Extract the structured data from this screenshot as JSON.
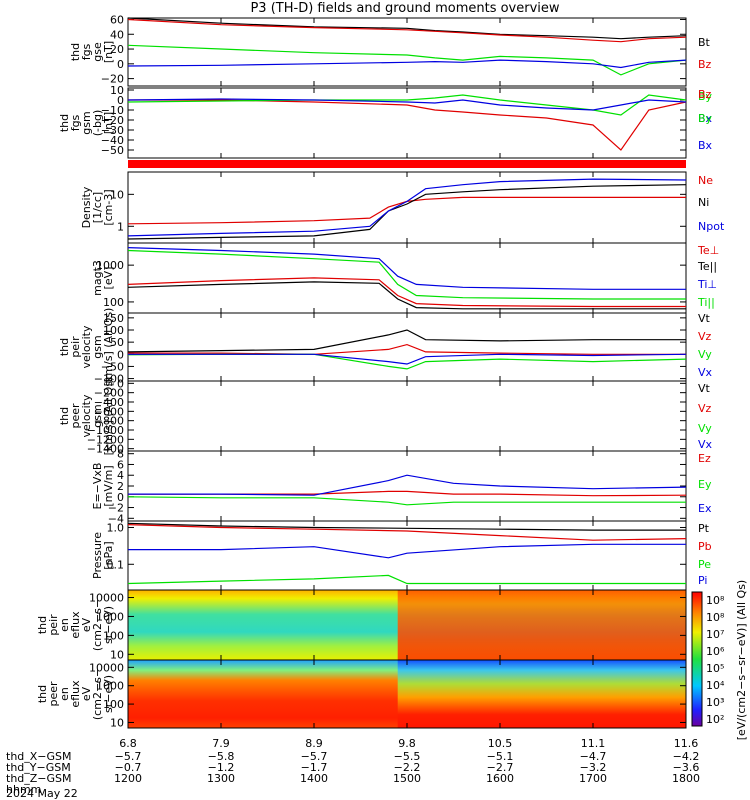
{
  "title": "P3 (TH-D) fields and ground moments overview",
  "colors": {
    "black": "#000000",
    "red": "#e00000",
    "green": "#00e000",
    "blue": "#0000e0",
    "frame": "#000000"
  },
  "chart_data": [
    {
      "type": "line",
      "id": "fgs-gse",
      "ylabel": [
        "thd",
        "fgs",
        "gse",
        "[nT]"
      ],
      "yticks": [
        "60",
        "40",
        "20",
        "0",
        "−20"
      ],
      "ylim": [
        -30,
        62
      ],
      "legend": [
        "Bt",
        "Bz",
        "By",
        "Bx"
      ],
      "legend_colors": [
        "black",
        "red",
        "green",
        "blue"
      ],
      "series": [
        {
          "name": "Bt",
          "color": "black",
          "x": [
            1200,
            1300,
            1400,
            1500,
            1530,
            1560,
            1600,
            1650,
            1700,
            1730,
            1760,
            1800
          ],
          "values": [
            62,
            55,
            50,
            48,
            45,
            43,
            40,
            38,
            36,
            34,
            36,
            38
          ]
        },
        {
          "name": "Bz",
          "color": "red",
          "x": [
            1200,
            1300,
            1400,
            1500,
            1530,
            1560,
            1600,
            1650,
            1700,
            1730,
            1760,
            1800
          ],
          "values": [
            60,
            53,
            49,
            46,
            44,
            42,
            39,
            36,
            32,
            30,
            34,
            36
          ]
        },
        {
          "name": "By",
          "color": "green",
          "x": [
            1200,
            1300,
            1400,
            1500,
            1530,
            1560,
            1600,
            1650,
            1700,
            1730,
            1760,
            1800
          ],
          "values": [
            25,
            20,
            15,
            12,
            8,
            5,
            10,
            8,
            5,
            -15,
            0,
            5
          ]
        },
        {
          "name": "Bx",
          "color": "blue",
          "x": [
            1200,
            1300,
            1400,
            1500,
            1530,
            1560,
            1600,
            1650,
            1700,
            1730,
            1760,
            1800
          ],
          "values": [
            -3,
            -2,
            0,
            2,
            3,
            2,
            5,
            3,
            0,
            -5,
            2,
            5
          ]
        }
      ]
    },
    {
      "type": "line",
      "id": "fgs-gsm",
      "ylabel": [
        "thd",
        "fgs",
        "gsm",
        "(-bg)",
        "[nT]"
      ],
      "yticks": [
        "10",
        "0",
        "−10",
        "−20",
        "−30",
        "−40",
        "−50"
      ],
      "ylim": [
        -58,
        12
      ],
      "legend": [
        "Bz",
        "By",
        "Bx"
      ],
      "legend_colors": [
        "red",
        "green",
        "blue"
      ],
      "series": [
        {
          "name": "Bz",
          "color": "red",
          "x": [
            1200,
            1300,
            1400,
            1500,
            1530,
            1560,
            1600,
            1650,
            1700,
            1730,
            1760,
            1800
          ],
          "values": [
            0,
            0,
            -2,
            -5,
            -10,
            -12,
            -15,
            -18,
            -25,
            -50,
            -10,
            -2
          ]
        },
        {
          "name": "By",
          "color": "green",
          "x": [
            1200,
            1300,
            1400,
            1500,
            1530,
            1560,
            1600,
            1650,
            1700,
            1730,
            1760,
            1800
          ],
          "values": [
            -2,
            -1,
            0,
            0,
            2,
            5,
            0,
            -5,
            -10,
            -15,
            5,
            0
          ]
        },
        {
          "name": "Bx",
          "color": "blue",
          "x": [
            1200,
            1300,
            1400,
            1500,
            1530,
            1560,
            1600,
            1650,
            1700,
            1730,
            1760,
            1800
          ],
          "values": [
            0,
            1,
            0,
            -2,
            -3,
            0,
            -5,
            -8,
            -10,
            -5,
            0,
            -2
          ]
        }
      ]
    },
    {
      "type": "line",
      "id": "density",
      "log": true,
      "ylabel": [
        "Density",
        "[1/cc]",
        "[cm-3]"
      ],
      "yticks": [
        "10",
        "1"
      ],
      "ylim": [
        0.3,
        50
      ],
      "legend": [
        "Ne",
        "Ni",
        "Npot"
      ],
      "legend_colors": [
        "red",
        "black",
        "blue"
      ],
      "series": [
        {
          "name": "Ne",
          "color": "red",
          "x": [
            1200,
            1300,
            1400,
            1460,
            1480,
            1500,
            1520,
            1560,
            1600,
            1700,
            1800
          ],
          "values": [
            1.2,
            1.3,
            1.5,
            1.8,
            4,
            6,
            7,
            8,
            8,
            8,
            8
          ]
        },
        {
          "name": "Ni",
          "color": "black",
          "x": [
            1200,
            1300,
            1400,
            1460,
            1480,
            1500,
            1520,
            1560,
            1600,
            1700,
            1800
          ],
          "values": [
            0.4,
            0.45,
            0.5,
            0.8,
            3,
            5,
            10,
            12,
            14,
            18,
            20
          ]
        },
        {
          "name": "Npot",
          "color": "blue",
          "x": [
            1200,
            1300,
            1400,
            1460,
            1480,
            1500,
            1520,
            1560,
            1600,
            1700,
            1800
          ],
          "values": [
            0.5,
            0.6,
            0.7,
            1,
            3,
            6,
            15,
            20,
            25,
            30,
            28
          ]
        }
      ]
    },
    {
      "type": "line",
      "id": "temperature",
      "log": true,
      "ylabel": [
        "magt3",
        "[eV]"
      ],
      "yticks": [
        "1000",
        "100"
      ],
      "ylim": [
        50,
        4000
      ],
      "legend": [
        "Te⊥",
        "Te||",
        "Ti⊥",
        "Ti||"
      ],
      "legend_colors": [
        "red",
        "black",
        "blue",
        "green"
      ],
      "series": [
        {
          "name": "Te⊥",
          "color": "red",
          "x": [
            1200,
            1300,
            1400,
            1470,
            1490,
            1510,
            1560,
            1700,
            1800
          ],
          "values": [
            300,
            380,
            450,
            400,
            150,
            90,
            80,
            75,
            75
          ]
        },
        {
          "name": "Te||",
          "color": "black",
          "x": [
            1200,
            1300,
            1400,
            1470,
            1490,
            1510,
            1560,
            1700,
            1800
          ],
          "values": [
            250,
            300,
            350,
            320,
            120,
            70,
            65,
            65,
            65
          ]
        },
        {
          "name": "Ti⊥",
          "color": "blue",
          "x": [
            1200,
            1300,
            1400,
            1470,
            1490,
            1510,
            1560,
            1700,
            1800
          ],
          "values": [
            3000,
            2500,
            2000,
            1500,
            500,
            300,
            250,
            220,
            220
          ]
        },
        {
          "name": "Ti||",
          "color": "green",
          "x": [
            1200,
            1300,
            1400,
            1470,
            1490,
            1510,
            1560,
            1700,
            1800
          ],
          "values": [
            2500,
            2000,
            1500,
            1200,
            300,
            150,
            130,
            120,
            120
          ]
        }
      ]
    },
    {
      "type": "line",
      "id": "ion-velocity",
      "ylabel": [
        "thd",
        "peir",
        "velocity",
        "gsm",
        "[km/s] (All Qs)"
      ],
      "yticks": [
        "150",
        "100",
        "50",
        "0",
        "−50",
        "−100"
      ],
      "ylim": [
        -110,
        170
      ],
      "legend": [
        "Vt",
        "Vz",
        "Vy",
        "Vx"
      ],
      "legend_colors": [
        "black",
        "red",
        "green",
        "blue"
      ],
      "series": [
        {
          "name": "Vt",
          "color": "black",
          "x": [
            1200,
            1300,
            1400,
            1480,
            1500,
            1520,
            1600,
            1700,
            1800
          ],
          "values": [
            10,
            15,
            20,
            80,
            100,
            60,
            55,
            60,
            60
          ]
        },
        {
          "name": "Vz",
          "color": "red",
          "x": [
            1200,
            1300,
            1400,
            1480,
            1500,
            1520,
            1600,
            1700,
            1800
          ],
          "values": [
            5,
            5,
            0,
            20,
            40,
            10,
            5,
            0,
            0
          ]
        },
        {
          "name": "Vy",
          "color": "green",
          "x": [
            1200,
            1300,
            1400,
            1480,
            1500,
            1520,
            1600,
            1700,
            1800
          ],
          "values": [
            -2,
            0,
            0,
            -50,
            -60,
            -30,
            -20,
            -30,
            -20
          ]
        },
        {
          "name": "Vx",
          "color": "blue",
          "x": [
            1200,
            1300,
            1400,
            1480,
            1500,
            1520,
            1600,
            1700,
            1800
          ],
          "values": [
            0,
            0,
            0,
            -30,
            -40,
            -10,
            0,
            -5,
            0
          ]
        }
      ]
    },
    {
      "type": "line",
      "id": "electron-velocity",
      "ylabel": [
        "thd",
        "peer",
        "velocity",
        "gsm",
        "[km/s] (All Qs)"
      ],
      "yticks": [
        "0",
        "−200",
        "−400",
        "−600",
        "−800",
        "−1000",
        "−1200",
        "−1400"
      ],
      "ylim": [
        -1450,
        50
      ],
      "legend": [
        "Vt",
        "Vz",
        "Vy",
        "Vx"
      ],
      "legend_colors": [
        "black",
        "red",
        "green",
        "blue"
      ],
      "series": []
    },
    {
      "type": "line",
      "id": "e-field",
      "ylabel": [
        "E=−VxB",
        "[mV/m]"
      ],
      "yticks": [
        "8",
        "6",
        "4",
        "2",
        "0",
        "−2",
        "−4"
      ],
      "ylim": [
        -4.5,
        8.5
      ],
      "legend": [
        "Ez",
        "Ey",
        "Ex"
      ],
      "legend_colors": [
        "red",
        "green",
        "blue"
      ],
      "series": [
        {
          "name": "Ez",
          "color": "red",
          "x": [
            1200,
            1300,
            1400,
            1480,
            1500,
            1550,
            1600,
            1700,
            1800
          ],
          "values": [
            0.5,
            0.5,
            0.5,
            1,
            1,
            0.5,
            0.5,
            0.2,
            0.3
          ]
        },
        {
          "name": "Ey",
          "color": "green",
          "x": [
            1200,
            1300,
            1400,
            1480,
            1500,
            1550,
            1600,
            1700,
            1800
          ],
          "values": [
            0,
            -0.2,
            -0.2,
            -1,
            -1.5,
            -1,
            -1,
            -1,
            -1
          ]
        },
        {
          "name": "Ex",
          "color": "blue",
          "x": [
            1200,
            1300,
            1400,
            1480,
            1500,
            1550,
            1600,
            1700,
            1800
          ],
          "values": [
            0.5,
            0.5,
            0.3,
            3,
            4,
            2.5,
            2,
            1.5,
            1.8
          ]
        }
      ]
    },
    {
      "type": "line",
      "id": "pressure",
      "log": true,
      "ylabel": [
        "Pressure",
        "[nPa]"
      ],
      "yticks": [
        "1.0",
        "0.1"
      ],
      "ylim": [
        0.02,
        1.5
      ],
      "legend": [
        "Pt",
        "Pb",
        "Pe",
        "Pi"
      ],
      "legend_colors": [
        "black",
        "red",
        "green",
        "blue"
      ],
      "series": [
        {
          "name": "Pt",
          "color": "black",
          "x": [
            1200,
            1300,
            1400,
            1500,
            1600,
            1700,
            1800
          ],
          "values": [
            1.3,
            1.1,
            1.0,
            0.95,
            0.9,
            0.85,
            0.85
          ]
        },
        {
          "name": "Pb",
          "color": "red",
          "x": [
            1200,
            1300,
            1400,
            1500,
            1600,
            1700,
            1800
          ],
          "values": [
            1.2,
            1.0,
            0.9,
            0.8,
            0.6,
            0.45,
            0.5
          ]
        },
        {
          "name": "Pe",
          "color": "green",
          "x": [
            1200,
            1300,
            1400,
            1480,
            1500,
            1600,
            1700,
            1800
          ],
          "values": [
            0.03,
            0.035,
            0.04,
            0.05,
            0.03,
            0.03,
            0.03,
            0.03
          ]
        },
        {
          "name": "Pi",
          "color": "blue",
          "x": [
            1200,
            1300,
            1400,
            1480,
            1500,
            1600,
            1700,
            1800
          ],
          "values": [
            0.25,
            0.25,
            0.3,
            0.15,
            0.2,
            0.3,
            0.35,
            0.35
          ]
        }
      ]
    },
    {
      "type": "heatmap",
      "id": "ion-spectrogram",
      "log": true,
      "ylabel": [
        "thd",
        "peir",
        "en",
        "eflux",
        "eV",
        "(cm2−s−",
        "sr−eV)"
      ],
      "yticks": [
        "10000",
        "1000",
        "100",
        "10"
      ],
      "ylim": [
        5,
        25000
      ]
    },
    {
      "type": "heatmap",
      "id": "electron-spectrogram",
      "log": true,
      "ylabel": [
        "thd",
        "peer",
        "en",
        "eflux",
        "eV",
        "(cm2−s−",
        "sr−eV)"
      ],
      "yticks": [
        "10000",
        "1000",
        "100",
        "10"
      ],
      "ylim": [
        5,
        25000
      ]
    }
  ],
  "colorbar": {
    "ticks": [
      "10⁸",
      "10⁸",
      "10⁷",
      "10⁶",
      "10⁵",
      "10⁴",
      "10³",
      "10²"
    ],
    "label": "[eV/(cm2−s−sr−eV)] (All Qs)"
  },
  "x_axis": {
    "ticks_x": [
      1200,
      1300,
      1400,
      1500,
      1600,
      1700,
      1800
    ],
    "rows": [
      {
        "label": "",
        "values": [
          "6.8",
          "7.9",
          "8.9",
          "9.8",
          "10.5",
          "11.1",
          "11.6"
        ]
      },
      {
        "label": "thd_X−GSM",
        "values": [
          "−5.7",
          "−5.8",
          "−5.7",
          "−5.5",
          "−5.1",
          "−4.7",
          "−4.2"
        ]
      },
      {
        "label": "thd_Y−GSM",
        "values": [
          "−0.7",
          "−1.2",
          "−1.7",
          "−2.2",
          "−2.7",
          "−3.2",
          "−3.6"
        ]
      },
      {
        "label": "thd_Z−GSM",
        "values": [
          "1200",
          "1300",
          "1400",
          "1500",
          "1600",
          "1700",
          "1800"
        ]
      },
      {
        "label": "hhmm",
        "values": []
      }
    ],
    "date": "2024 May 22"
  }
}
